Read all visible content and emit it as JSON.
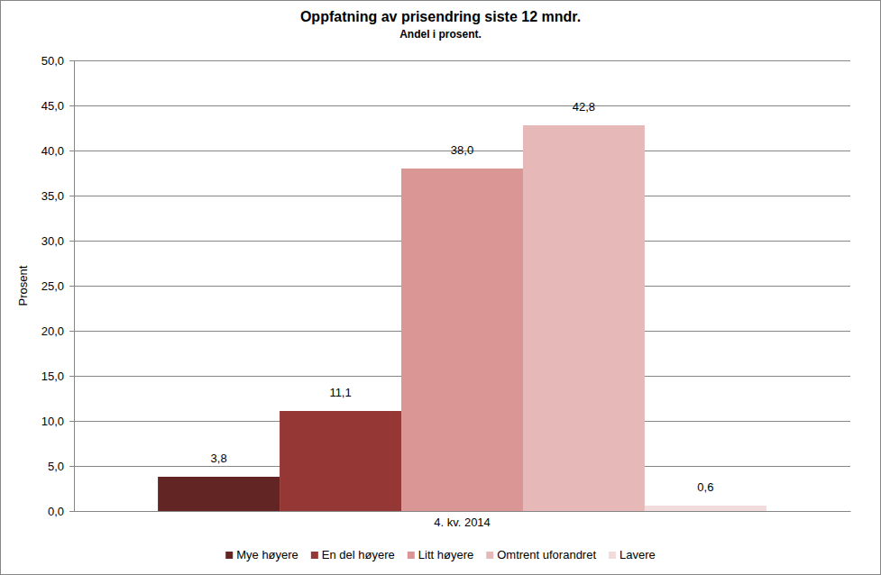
{
  "chart_data": {
    "type": "bar",
    "title": "Oppfatning av prisendring siste 12 mndr.",
    "subtitle": "Andel i prosent.",
    "y_label": "Prosent",
    "categories": [
      "4. kv. 2014"
    ],
    "series": [
      {
        "name": "Mye høyere",
        "color": "#632523",
        "values": [
          3.8
        ],
        "value_labels": [
          "3,8"
        ]
      },
      {
        "name": "En del høyere",
        "color": "#953735",
        "values": [
          11.1
        ],
        "value_labels": [
          "11,1"
        ]
      },
      {
        "name": "Litt høyere",
        "color": "#d99694",
        "values": [
          38.0
        ],
        "value_labels": [
          "38,0"
        ]
      },
      {
        "name": "Omtrent uforandret",
        "color": "#e6b9b8",
        "values": [
          42.8
        ],
        "value_labels": [
          "42,8"
        ]
      },
      {
        "name": "Lavere",
        "color": "#f2dcdb",
        "values": [
          0.6
        ],
        "value_labels": [
          "0,6"
        ]
      }
    ],
    "ylim": [
      0,
      50
    ],
    "yticks": [
      {
        "value": 0,
        "label": "0,0"
      },
      {
        "value": 5,
        "label": "5,0"
      },
      {
        "value": 10,
        "label": "10,0"
      },
      {
        "value": 15,
        "label": "15,0"
      },
      {
        "value": 20,
        "label": "20,0"
      },
      {
        "value": 25,
        "label": "25,0"
      },
      {
        "value": 30,
        "label": "30,0"
      },
      {
        "value": 35,
        "label": "35,0"
      },
      {
        "value": 40,
        "label": "40,0"
      },
      {
        "value": 45,
        "label": "45,0"
      },
      {
        "value": 50,
        "label": "50,0"
      }
    ],
    "grid": true,
    "data_labels": true,
    "legend": "bottom"
  }
}
